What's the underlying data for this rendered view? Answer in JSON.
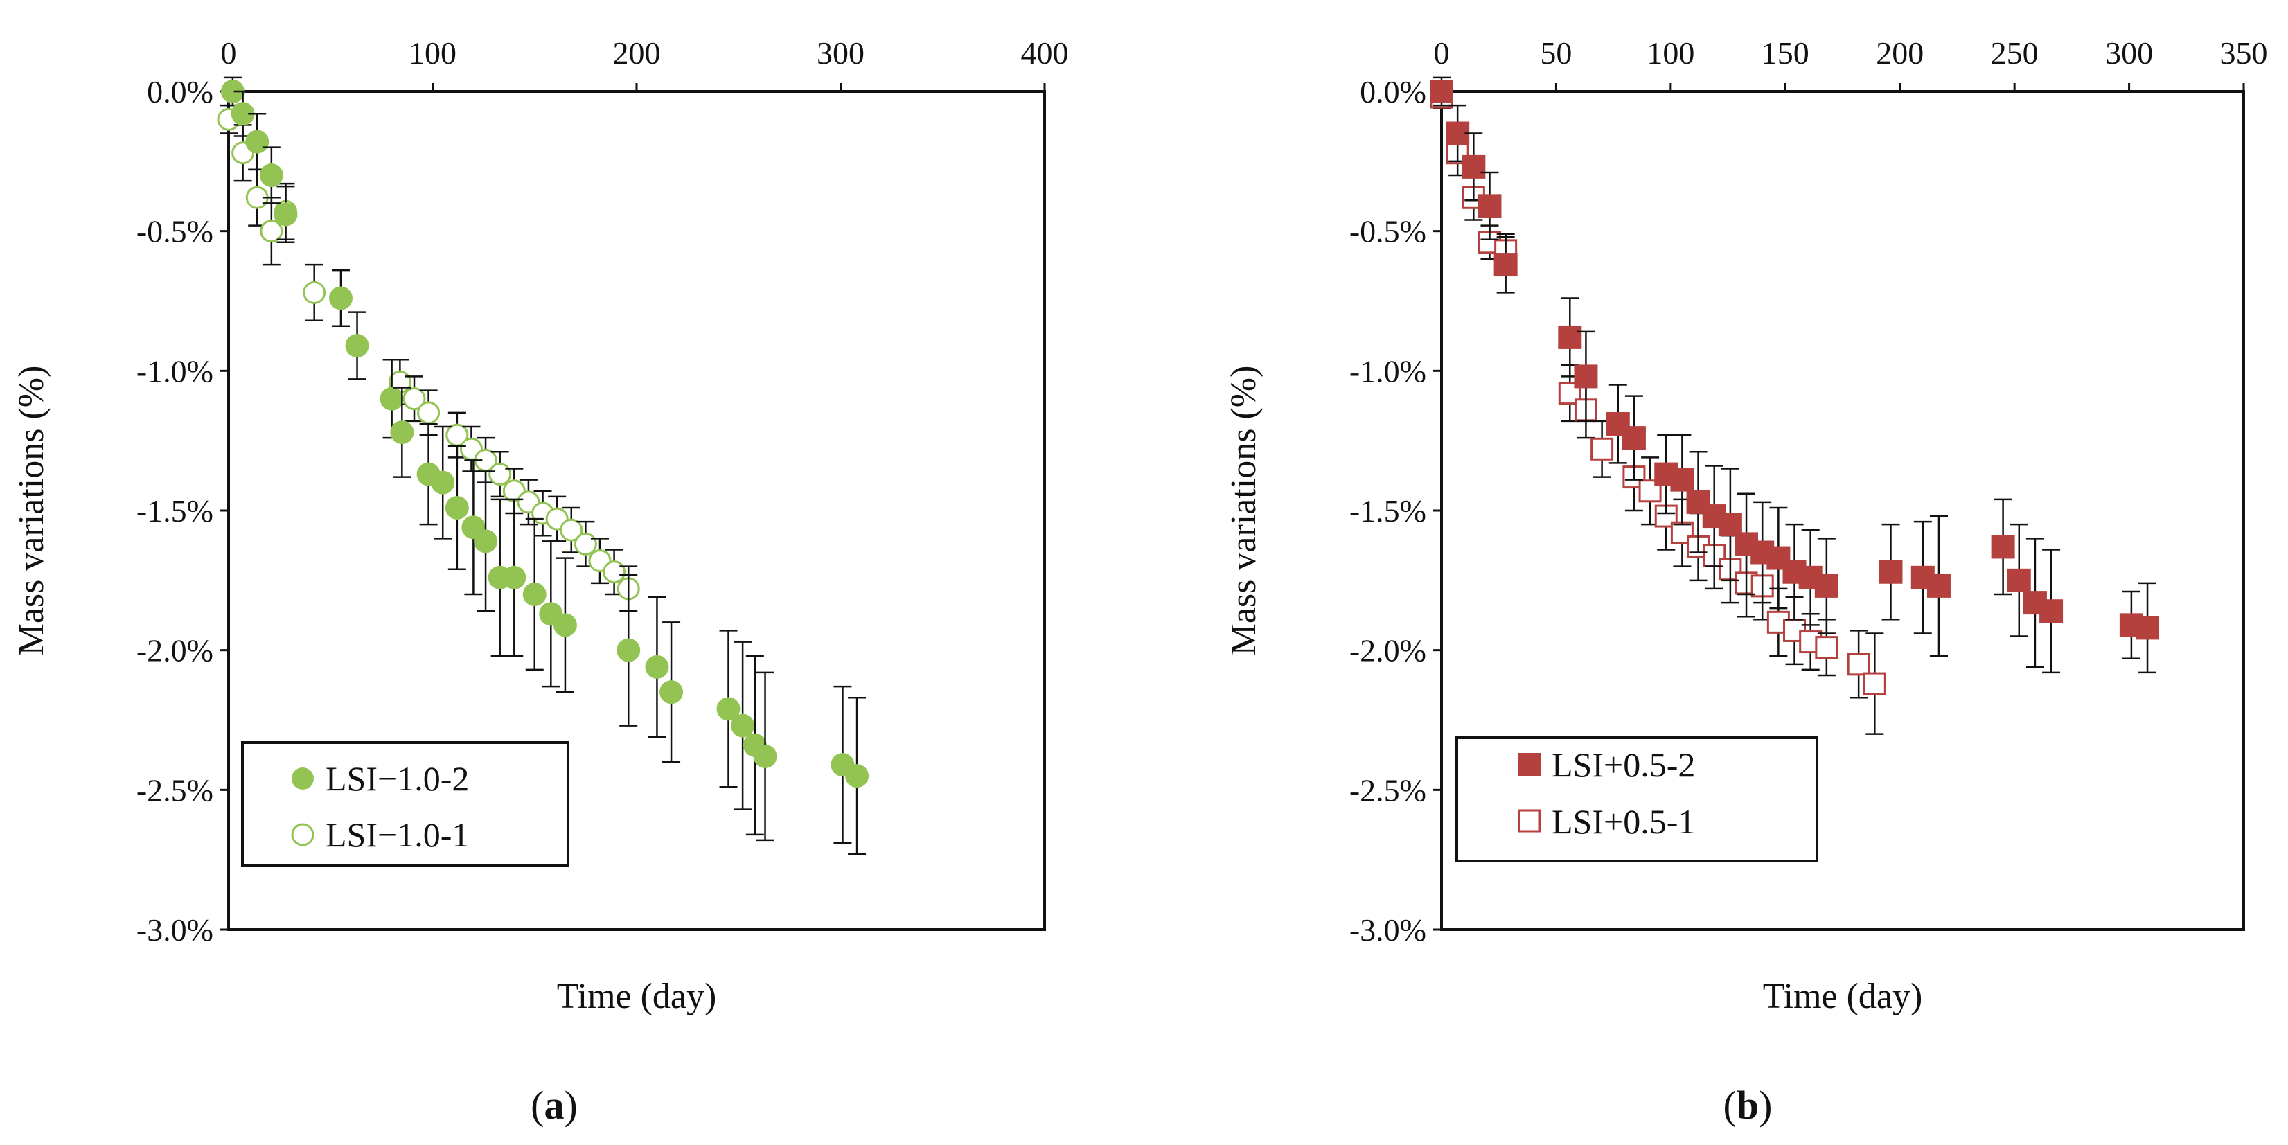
{
  "chart_data": [
    {
      "type": "scatter",
      "panel_label": "a",
      "xlabel": "Time (day)",
      "ylabel": "Mass variations (%)",
      "xlim": [
        0,
        400
      ],
      "ylim": [
        -3.0,
        0.0
      ],
      "x_ticks": [
        "0",
        "100",
        "200",
        "300",
        "400"
      ],
      "x_tick_values": [
        0,
        100,
        200,
        300,
        400
      ],
      "y_ticks": [
        "0.0%",
        "-0.5%",
        "-1.0%",
        "-1.5%",
        "-2.0%",
        "-2.5%",
        "-3.0%"
      ],
      "y_tick_values": [
        0.0,
        -0.5,
        -1.0,
        -1.5,
        -2.0,
        -2.5,
        -3.0
      ],
      "x_axis_position": "top",
      "grid": false,
      "legend_position": "bottom-left",
      "series": [
        {
          "name": "LSI−1.0-2",
          "marker": "circle-filled",
          "color": "#92C353",
          "x": [
            2,
            7,
            14,
            21,
            28,
            55,
            63,
            80,
            85,
            98,
            105,
            112,
            120,
            126,
            133,
            140,
            150,
            158,
            165,
            196,
            210,
            217,
            245,
            252,
            258,
            263,
            301,
            308
          ],
          "y": [
            0.0,
            -0.08,
            -0.18,
            -0.3,
            -0.44,
            -0.74,
            -0.91,
            -1.1,
            -1.22,
            -1.37,
            -1.4,
            -1.49,
            -1.56,
            -1.61,
            -1.74,
            -1.74,
            -1.8,
            -1.87,
            -1.91,
            -2.0,
            -2.06,
            -2.15,
            -2.21,
            -2.27,
            -2.34,
            -2.38,
            -2.41,
            -2.45
          ],
          "err": [
            0.05,
            0.08,
            0.1,
            0.1,
            0.1,
            0.1,
            0.12,
            0.14,
            0.16,
            0.18,
            0.2,
            0.22,
            0.24,
            0.25,
            0.28,
            0.28,
            0.27,
            0.26,
            0.24,
            0.27,
            0.25,
            0.25,
            0.28,
            0.3,
            0.32,
            0.3,
            0.28,
            0.28
          ]
        },
        {
          "name": "LSI−1.0-1",
          "marker": "circle-open",
          "color": "#92C353",
          "x": [
            0,
            7,
            14,
            21,
            28,
            42,
            84,
            91,
            98,
            112,
            119,
            126,
            133,
            140,
            147,
            154,
            161,
            168,
            175,
            182,
            189,
            196
          ],
          "y": [
            -0.1,
            -0.22,
            -0.38,
            -0.5,
            -0.43,
            -0.72,
            -1.04,
            -1.1,
            -1.15,
            -1.23,
            -1.28,
            -1.32,
            -1.37,
            -1.43,
            -1.47,
            -1.51,
            -1.53,
            -1.57,
            -1.62,
            -1.68,
            -1.72,
            -1.78
          ],
          "err": [
            0.05,
            0.1,
            0.1,
            0.12,
            0.1,
            0.1,
            0.08,
            0.08,
            0.08,
            0.08,
            0.08,
            0.08,
            0.08,
            0.08,
            0.08,
            0.08,
            0.08,
            0.08,
            0.08,
            0.08,
            0.08,
            0.08
          ]
        }
      ]
    },
    {
      "type": "scatter",
      "panel_label": "b",
      "xlabel": "Time (day)",
      "ylabel": "Mass variations (%)",
      "xlim": [
        0,
        350
      ],
      "ylim": [
        -3.0,
        0.0
      ],
      "x_ticks": [
        "0",
        "50",
        "100",
        "150",
        "200",
        "250",
        "300",
        "350"
      ],
      "x_tick_values": [
        0,
        50,
        100,
        150,
        200,
        250,
        300,
        350
      ],
      "y_ticks": [
        "0.0%",
        "-0.5%",
        "-1.0%",
        "-1.5%",
        "-2.0%",
        "-2.5%",
        "-3.0%"
      ],
      "y_tick_values": [
        0.0,
        -0.5,
        -1.0,
        -1.5,
        -2.0,
        -2.5,
        -3.0
      ],
      "x_axis_position": "top",
      "grid": false,
      "legend_position": "bottom-left",
      "series": [
        {
          "name": "LSI+0.5-2",
          "marker": "square-filled",
          "color": "#B5413E",
          "x": [
            0,
            7,
            14,
            21,
            28,
            56,
            63,
            77,
            84,
            98,
            105,
            112,
            119,
            126,
            133,
            140,
            147,
            154,
            161,
            168,
            196,
            210,
            217,
            245,
            252,
            259,
            266,
            301,
            308
          ],
          "y": [
            0.0,
            -0.15,
            -0.27,
            -0.41,
            -0.62,
            -0.88,
            -1.02,
            -1.19,
            -1.24,
            -1.37,
            -1.39,
            -1.47,
            -1.52,
            -1.55,
            -1.62,
            -1.65,
            -1.67,
            -1.72,
            -1.74,
            -1.77,
            -1.72,
            -1.74,
            -1.77,
            -1.63,
            -1.75,
            -1.83,
            -1.86,
            -1.91,
            -1.92
          ],
          "err": [
            0.05,
            0.1,
            0.12,
            0.12,
            0.1,
            0.14,
            0.16,
            0.14,
            0.15,
            0.14,
            0.16,
            0.18,
            0.18,
            0.2,
            0.18,
            0.18,
            0.18,
            0.17,
            0.17,
            0.17,
            0.17,
            0.2,
            0.25,
            0.17,
            0.2,
            0.23,
            0.22,
            0.12,
            0.16
          ]
        },
        {
          "name": "LSI+0.5-1",
          "marker": "square-open",
          "color": "#B5413E",
          "x": [
            0,
            7,
            14,
            21,
            28,
            56,
            63,
            70,
            84,
            91,
            98,
            105,
            112,
            119,
            126,
            133,
            140,
            147,
            154,
            161,
            168,
            182,
            189
          ],
          "y": [
            -0.02,
            -0.22,
            -0.38,
            -0.54,
            -0.57,
            -1.08,
            -1.14,
            -1.28,
            -1.38,
            -1.43,
            -1.52,
            -1.58,
            -1.63,
            -1.66,
            -1.71,
            -1.76,
            -1.77,
            -1.9,
            -1.93,
            -1.97,
            -1.99,
            -2.05,
            -2.12
          ],
          "err": [
            0.04,
            0.08,
            0.08,
            0.06,
            0.06,
            0.1,
            0.1,
            0.1,
            0.12,
            0.12,
            0.12,
            0.12,
            0.12,
            0.12,
            0.12,
            0.12,
            0.12,
            0.12,
            0.12,
            0.1,
            0.1,
            0.12,
            0.18
          ]
        }
      ]
    }
  ]
}
